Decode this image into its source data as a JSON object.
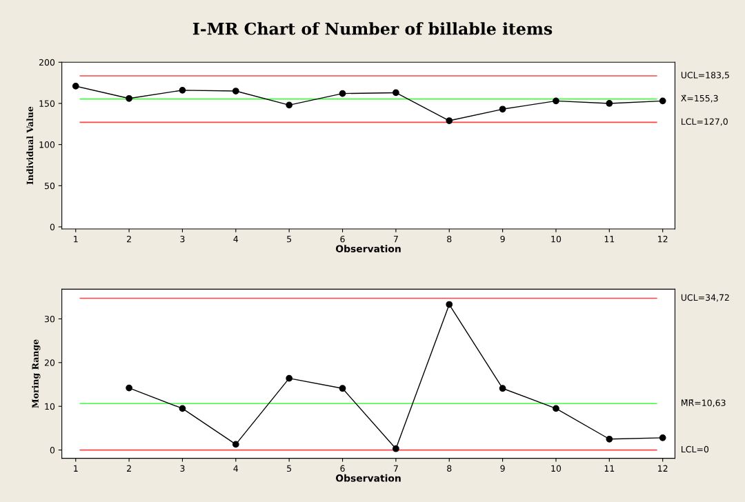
{
  "chart_data": [
    {
      "type": "line",
      "title": "I-MR Chart of Number of billable items",
      "xlabel": "Observation",
      "ylabel": "Individual Value",
      "x": [
        1,
        2,
        3,
        4,
        5,
        6,
        7,
        8,
        9,
        10,
        11,
        12
      ],
      "series": [
        {
          "color": "#000000",
          "values": [
            171,
            156,
            166,
            165,
            148,
            162,
            163,
            129,
            143,
            153,
            150,
            153
          ]
        }
      ],
      "xlim": [
        0.74,
        12.23
      ],
      "xticks": [
        1,
        2,
        3,
        4,
        5,
        6,
        7,
        8,
        9,
        10,
        11,
        12
      ],
      "ylim": [
        -2.5,
        200
      ],
      "yticks": [
        0,
        50,
        100,
        150,
        200
      ],
      "marker": "circle",
      "ref_lines": [
        {
          "axis": "y",
          "value": 183.5,
          "label": "UCL=183,5",
          "color": "#ff4040"
        },
        {
          "axis": "y",
          "value": 155.3,
          "label": "X̄=155,3",
          "color": "#40ff40"
        },
        {
          "axis": "y",
          "value": 127.0,
          "label": "LCL=127,0",
          "color": "#ff4040"
        }
      ]
    },
    {
      "type": "line",
      "xlabel": "Observation",
      "ylabel": "Moring Range",
      "series": [
        {
          "color": "#000000",
          "x": [
            2,
            3,
            4,
            5,
            6,
            7,
            8,
            9,
            10,
            11,
            12
          ],
          "values": [
            14.2,
            9.5,
            1.3,
            16.4,
            14.1,
            0.3,
            33.3,
            14.1,
            9.5,
            2.5,
            2.8
          ]
        }
      ],
      "xlim": [
        0.74,
        12.23
      ],
      "xticks": [
        1,
        2,
        3,
        4,
        5,
        6,
        7,
        8,
        9,
        10,
        11,
        12
      ],
      "ylim": [
        -1.9,
        36.8
      ],
      "yticks": [
        0,
        10,
        20,
        30
      ],
      "marker": "circle",
      "ref_lines": [
        {
          "axis": "y",
          "value": 34.72,
          "label": "UCL=34,72",
          "color": "#ff4040"
        },
        {
          "axis": "y",
          "value": 10.63,
          "label": "M̄R̄=10,63",
          "color": "#40ff40"
        },
        {
          "axis": "y",
          "value": 0,
          "label": "LCL=0",
          "color": "#ff4040"
        }
      ]
    }
  ]
}
